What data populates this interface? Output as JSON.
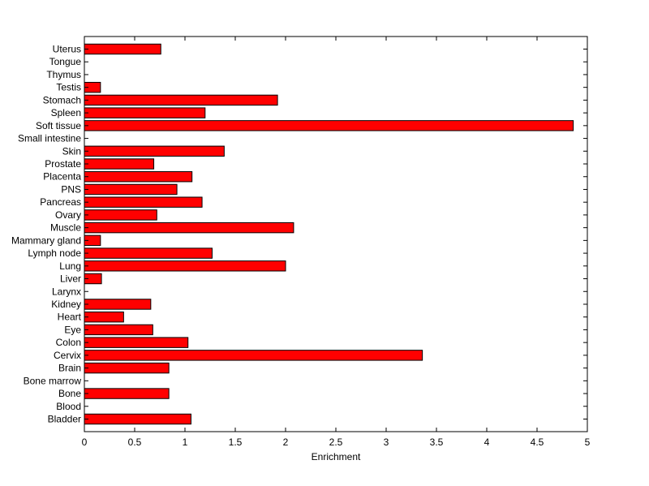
{
  "chart_data": {
    "type": "bar",
    "orientation": "horizontal",
    "title": "",
    "xlabel": "Enrichment",
    "ylabel": "",
    "xlim": [
      0,
      5
    ],
    "xticks": [
      "0",
      "0.5",
      "1",
      "1.5",
      "2",
      "2.5",
      "3",
      "3.5",
      "4",
      "4.5",
      "5"
    ],
    "grid": false,
    "bar_color": "#ff0000",
    "edge_color": "#000000",
    "categories": [
      "Uterus",
      "Tongue",
      "Thymus",
      "Testis",
      "Stomach",
      "Spleen",
      "Soft tissue",
      "Small intestine",
      "Skin",
      "Prostate",
      "Placenta",
      "PNS",
      "Pancreas",
      "Ovary",
      "Muscle",
      "Mammary gland",
      "Lymph node",
      "Lung",
      "Liver",
      "Larynx",
      "Kidney",
      "Heart",
      "Eye",
      "Colon",
      "Cervix",
      "Brain",
      "Bone marrow",
      "Bone",
      "Blood",
      "Bladder"
    ],
    "values": [
      0.76,
      0,
      0,
      0.16,
      1.92,
      1.2,
      4.86,
      0,
      1.39,
      0.69,
      1.07,
      0.92,
      1.17,
      0.72,
      2.08,
      0.16,
      1.27,
      2.0,
      0.17,
      0,
      0.66,
      0.39,
      0.68,
      1.03,
      3.36,
      0.84,
      0,
      0.84,
      0,
      1.06
    ]
  }
}
